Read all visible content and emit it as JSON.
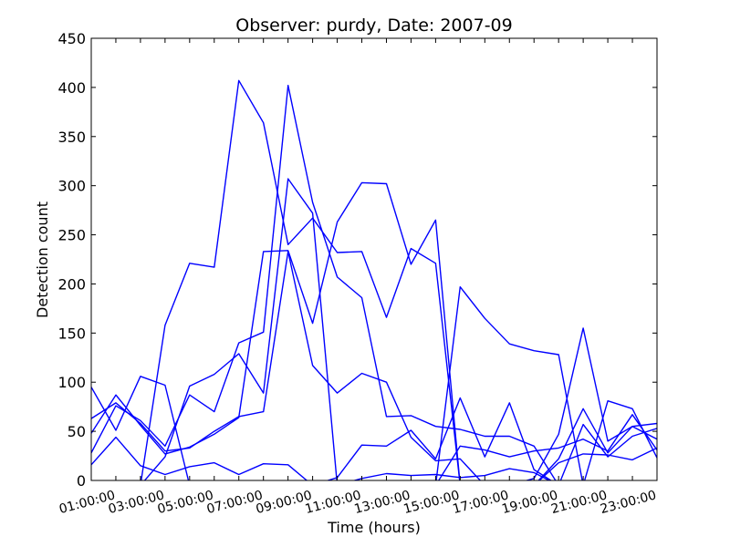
{
  "chart_data": {
    "type": "line",
    "title": "Observer: purdy, Date: 2007-09",
    "xlabel": "Time (hours)",
    "ylabel": "Detection count",
    "x": [
      "00:00:00",
      "01:00:00",
      "02:00:00",
      "03:00:00",
      "04:00:00",
      "05:00:00",
      "06:00:00",
      "07:00:00",
      "08:00:00",
      "09:00:00",
      "10:00:00",
      "11:00:00",
      "12:00:00",
      "13:00:00",
      "14:00:00",
      "15:00:00",
      "16:00:00",
      "17:00:00",
      "18:00:00",
      "19:00:00",
      "20:00:00",
      "21:00:00",
      "22:00:00",
      "23:00:00"
    ],
    "xtick_labels": [
      "01:00:00",
      "03:00:00",
      "05:00:00",
      "07:00:00",
      "09:00:00",
      "11:00:00",
      "13:00:00",
      "15:00:00",
      "17:00:00",
      "19:00:00",
      "21:00:00",
      "23:00:00"
    ],
    "yticks": [
      0,
      50,
      100,
      150,
      200,
      250,
      300,
      350,
      400,
      450
    ],
    "ylim": [
      0,
      450
    ],
    "grid": false,
    "line_color": "#0000ff",
    "series": [
      {
        "values": [
          95,
          51,
          106,
          97,
          -5,
          -5,
          -5,
          -5,
          -5,
          -5,
          -5,
          -5,
          -5,
          -5,
          -5,
          -5,
          -5,
          -5,
          -5,
          -5,
          -5,
          -5,
          -5,
          -5
        ]
      },
      {
        "values": [
          -5,
          -5,
          -5,
          24,
          96,
          108,
          129,
          89,
          307,
          272,
          -5,
          2,
          7,
          5,
          6,
          3,
          5,
          12,
          8,
          -5,
          -5,
          -5,
          -5,
          -5
        ]
      },
      {
        "values": [
          63,
          79,
          58,
          30,
          33,
          50,
          65,
          70,
          233,
          117,
          89,
          109,
          100,
          44,
          20,
          22,
          -5,
          -5,
          -5,
          -5,
          -5,
          -5,
          -5,
          -5
        ]
      },
      {
        "values": [
          -5,
          -5,
          -5,
          158,
          221,
          217,
          407,
          364,
          240,
          267,
          232,
          233,
          166,
          236,
          221,
          -5,
          -5,
          -5,
          -5,
          -5,
          -5,
          -5,
          -5,
          -5
        ]
      },
      {
        "values": [
          -5,
          -5,
          -5,
          -5,
          -5,
          -5,
          -5,
          -5,
          -5,
          -5,
          -5,
          -5,
          -5,
          -5,
          -5,
          197,
          165,
          139,
          132,
          128,
          -5,
          81,
          73,
          23
        ]
      },
      {
        "values": [
          -5,
          -5,
          -5,
          -5,
          -5,
          -5,
          -5,
          -5,
          -5,
          -5,
          -5,
          -5,
          -5,
          -5,
          -5,
          -5,
          -5,
          -5,
          2,
          47,
          155,
          40,
          55,
          58
        ]
      },
      {
        "values": [
          -5,
          -5,
          -5,
          -5,
          -5,
          -5,
          -5,
          -5,
          -5,
          -5,
          -5,
          -5,
          -5,
          -5,
          -5,
          35,
          31,
          24,
          30,
          33,
          42,
          30,
          67,
          31
        ]
      },
      {
        "values": [
          -5,
          -5,
          -5,
          -5,
          -5,
          -5,
          -5,
          -5,
          -5,
          -5,
          -5,
          -5,
          -5,
          -5,
          -5,
          -5,
          -5,
          -5,
          -5,
          22,
          73,
          28,
          55,
          42
        ]
      },
      {
        "values": [
          -5,
          -5,
          -5,
          -5,
          -5,
          -5,
          -5,
          -5,
          -5,
          -5,
          -5,
          -5,
          -5,
          -5,
          -5,
          -5,
          -5,
          -5,
          -5,
          18,
          27,
          26,
          21,
          33
        ]
      },
      {
        "values": [
          48,
          87,
          56,
          27,
          34,
          47,
          64,
          233,
          234,
          160,
          263,
          303,
          302,
          220,
          265,
          -5,
          -5,
          -5,
          -5,
          -5,
          -5,
          -5,
          -5,
          -5
        ]
      },
      {
        "values": [
          28,
          76,
          61,
          35,
          87,
          70,
          140,
          151,
          402,
          283,
          207,
          186,
          65,
          66,
          55,
          52,
          45,
          45,
          35,
          -5,
          -5,
          -5,
          -5,
          -5
        ]
      },
      {
        "values": [
          16,
          44,
          15,
          6,
          14,
          18,
          6,
          17,
          16,
          -5,
          3,
          36,
          35,
          51,
          22,
          84,
          24,
          79,
          11,
          -5,
          -5,
          -5,
          -5,
          -5
        ]
      },
      {
        "values": [
          -5,
          -5,
          -5,
          -5,
          -5,
          -5,
          -5,
          -5,
          -5,
          -5,
          -5,
          -5,
          -5,
          -5,
          -5,
          -5,
          -5,
          -5,
          -5,
          -5,
          57,
          24,
          45,
          53
        ]
      },
      {
        "values": [
          -5,
          -5,
          -5,
          -5,
          -5,
          -5,
          -5,
          -5,
          -5,
          -5,
          -5,
          -5,
          -5,
          -5,
          -5,
          -5,
          -5,
          -5,
          -5,
          -5,
          -5,
          -5,
          -5,
          -5
        ]
      },
      {
        "values": [
          -5,
          -5,
          -5,
          -5,
          -5,
          -5,
          -5,
          -5,
          -5,
          -5,
          -5,
          -5,
          -5,
          -5,
          -5,
          -5,
          -5,
          -5,
          -5,
          -5,
          -5,
          -5,
          -5,
          -5
        ]
      },
      {
        "values": [
          -5,
          -5,
          -5,
          -5,
          -5,
          -5,
          -5,
          -5,
          -5,
          -5,
          -5,
          -5,
          -5,
          -5,
          -5,
          -5,
          -5,
          -5,
          -5,
          -5,
          -5,
          -5,
          -5,
          -5
        ]
      },
      {
        "values": [
          -5,
          -5,
          -5,
          -5,
          -5,
          -5,
          -5,
          -5,
          -5,
          -5,
          -5,
          -5,
          -5,
          -5,
          -5,
          -5,
          -5,
          -5,
          -5,
          -5,
          -5,
          -5,
          -5,
          -5
        ]
      },
      {
        "values": [
          -5,
          -5,
          -5,
          -5,
          -5,
          -5,
          -5,
          -5,
          -5,
          -5,
          -5,
          -5,
          -5,
          -5,
          -5,
          -5,
          -5,
          -5,
          -5,
          -5,
          -5,
          -5,
          -5,
          -5
        ]
      }
    ]
  }
}
